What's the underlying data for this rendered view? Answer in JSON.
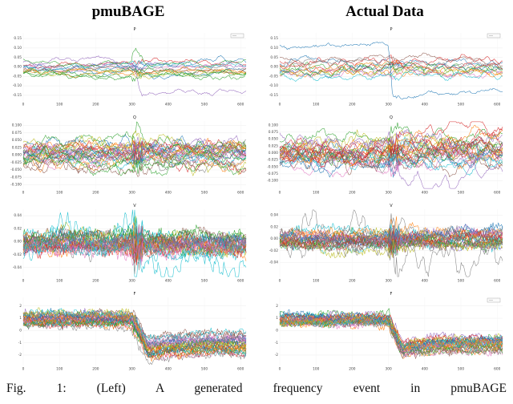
{
  "headers": [
    {
      "label": "pmuBAGE"
    },
    {
      "label": "Actual Data"
    }
  ],
  "caption": "Fig. 1: (Left) A generated frequency event in pmuBAGE",
  "palette": [
    "#1f77b4",
    "#ff7f0e",
    "#2ca02c",
    "#d62728",
    "#9467bd",
    "#8c564b",
    "#e377c2",
    "#7f7f7f",
    "#bcbd22",
    "#17becf"
  ],
  "chart_data": [
    {
      "type": "line",
      "panel": "pmuBAGE",
      "title": "P",
      "x_ticks": [
        0,
        100,
        200,
        300,
        400,
        500,
        600
      ],
      "x_tick_labels": [
        "0",
        "100",
        "200",
        "300",
        "400",
        "500",
        "600"
      ],
      "xlim": [
        0,
        615
      ],
      "y_ticks": [
        0.15,
        0.1,
        0.05,
        0.0,
        -0.05,
        -0.1,
        -0.15
      ],
      "y_tick_labels": [
        "0.15",
        "0.10",
        "0.05",
        "0.00",
        "-0.05",
        "-0.10",
        "-0.15"
      ],
      "ylim": [
        -0.18,
        0.18
      ],
      "n_series": 16,
      "seed": 11,
      "spread": 0.04,
      "noise": 0.004,
      "jitter": 0.0025,
      "wander": 0.008,
      "event_t": 300,
      "event_jitter": 0.012,
      "legend_box": true,
      "specials": [
        {
          "color": 4,
          "base": 0.02,
          "ev": {
            "shift": -0.15,
            "ramp": 25,
            "dip": -0.02
          }
        },
        {
          "color": 2,
          "base": 0.034,
          "ev": {
            "spike": 0.05,
            "shift": -0.01,
            "ramp": 40
          }
        },
        {
          "color": 2,
          "base": -0.042,
          "ev": {
            "spike": -0.025
          }
        }
      ]
    },
    {
      "type": "line",
      "panel": "Actual Data",
      "title": "P",
      "x_ticks": [
        0,
        100,
        200,
        300,
        400,
        500,
        600
      ],
      "x_tick_labels": [
        "0",
        "100",
        "200",
        "300",
        "400",
        "500",
        "600"
      ],
      "xlim": [
        0,
        615
      ],
      "y_ticks": [
        0.15,
        0.1,
        0.05,
        0.0,
        -0.05,
        -0.1,
        -0.15
      ],
      "y_tick_labels": [
        "0.15",
        "0.10",
        "0.05",
        "0.00",
        "-0.05",
        "-0.10",
        "-0.15"
      ],
      "ylim": [
        -0.18,
        0.18
      ],
      "n_series": 15,
      "seed": 22,
      "spread": 0.038,
      "noise": 0.005,
      "jitter": 0.003,
      "wander": 0.012,
      "event_t": 300,
      "event_jitter": 0.012,
      "legend_box": true,
      "specials": [
        {
          "color": 0,
          "base": 0.115,
          "wander": 0.006,
          "ev": {
            "shift": -0.255,
            "ramp": 12,
            "dip": -0.012
          }
        }
      ]
    },
    {
      "type": "line",
      "panel": "pmuBAGE",
      "title": "Q",
      "x_ticks": [
        0,
        100,
        200,
        300,
        400,
        500,
        600
      ],
      "x_tick_labels": [
        "0",
        "100",
        "200",
        "300",
        "400",
        "500",
        "600"
      ],
      "xlim": [
        0,
        615
      ],
      "y_ticks": [
        0.1,
        0.075,
        0.05,
        0.025,
        0.0,
        -0.025,
        -0.05,
        -0.075,
        -0.1
      ],
      "y_tick_labels": [
        "0.100",
        "0.075",
        "0.050",
        "0.025",
        "0.000",
        "-0.025",
        "-0.050",
        "-0.075",
        "-0.100"
      ],
      "ylim": [
        -0.115,
        0.115
      ],
      "n_series": 30,
      "seed": 33,
      "spread": 0.03,
      "noise": 0.006,
      "jitter": 0.0045,
      "wander": 0.013,
      "event_t": 300,
      "event_jitter": 0.02,
      "specials": [
        {
          "color": 2,
          "base": 0.012,
          "ev": {
            "spike": 0.072,
            "shift": 0.025,
            "ramp": 25
          }
        },
        {
          "color": 2,
          "base": -0.018,
          "ev": {
            "shift": -0.045,
            "ramp": 70
          }
        },
        {
          "color": 8,
          "base": 0.042,
          "ev": {
            "spike": 0.028
          }
        }
      ]
    },
    {
      "type": "line",
      "panel": "Actual Data",
      "title": "Q",
      "x_ticks": [
        0,
        100,
        200,
        300,
        400,
        500,
        600
      ],
      "x_tick_labels": [
        "0",
        "100",
        "200",
        "300",
        "400",
        "500",
        "600"
      ],
      "xlim": [
        0,
        615
      ],
      "y_ticks": [
        0.1,
        0.075,
        0.05,
        0.025,
        0.0,
        -0.025,
        -0.05,
        -0.075,
        -0.1
      ],
      "y_tick_labels": [
        "0.100",
        "0.075",
        "0.050",
        "0.025",
        "0.000",
        "-0.025",
        "-0.050",
        "-0.075",
        "-0.100"
      ],
      "ylim": [
        -0.13,
        0.115
      ],
      "n_series": 30,
      "seed": 44,
      "spread": 0.028,
      "noise": 0.007,
      "jitter": 0.0045,
      "wander": 0.017,
      "event_t": 300,
      "event_jitter": 0.02,
      "specials": [
        {
          "color": 4,
          "base": 0.062,
          "wander": 0.02,
          "ev": {
            "shift": -0.155,
            "ramp": 55
          }
        },
        {
          "color": 3,
          "base": 0.004,
          "ev": {
            "shift": 0.05,
            "ramp": 45
          }
        },
        {
          "color": 1,
          "base": -0.006,
          "ev": {
            "shift": 0.055,
            "ramp": 70
          }
        },
        {
          "color": 3,
          "base": 0.018,
          "ev": {
            "shift": 0.035,
            "ramp": 35
          }
        }
      ]
    },
    {
      "type": "line",
      "panel": "pmuBAGE",
      "title": "V",
      "x_ticks": [
        0,
        100,
        200,
        300,
        400,
        500,
        600
      ],
      "x_tick_labels": [
        "0",
        "100",
        "200",
        "300",
        "400",
        "500",
        "600"
      ],
      "xlim": [
        0,
        615
      ],
      "y_ticks": [
        0.04,
        0.02,
        0.0,
        -0.02,
        -0.04
      ],
      "y_tick_labels": [
        "0.04",
        "0.02",
        "0.00",
        "-0.02",
        "-0.04"
      ],
      "ylim": [
        -0.055,
        0.05
      ],
      "n_series": 30,
      "seed": 55,
      "spread": 0.011,
      "noise": 0.002,
      "jitter": 0.0075,
      "wander": 0.004,
      "event_t": 300,
      "event_jitter": 0.022,
      "specials": [
        {
          "color": 9,
          "base": 0.004,
          "wander": 0.021,
          "jitter": 0.007,
          "ev": {
            "shift": -0.034,
            "ramp": 90,
            "dip": -0.012
          }
        },
        {
          "color": 9,
          "base": -0.008,
          "ev": {
            "dip": -0.03,
            "ramp": 12
          }
        },
        {
          "color": 7,
          "ev": {
            "dip": -0.028,
            "ramp": 6
          }
        }
      ]
    },
    {
      "type": "line",
      "panel": "Actual Data",
      "title": "V",
      "x_ticks": [
        0,
        100,
        200,
        300,
        400,
        500,
        600
      ],
      "x_tick_labels": [
        "0",
        "100",
        "200",
        "300",
        "400",
        "500",
        "600"
      ],
      "xlim": [
        0,
        615
      ],
      "y_ticks": [
        0.04,
        0.02,
        0.0,
        -0.02,
        -0.04
      ],
      "y_tick_labels": [
        "0.04",
        "0.02",
        "0.00",
        "-0.02",
        "-0.04"
      ],
      "ylim": [
        -0.065,
        0.05
      ],
      "n_series": 28,
      "seed": 66,
      "spread": 0.009,
      "noise": 0.002,
      "jitter": 0.006,
      "wander": 0.003,
      "event_t": 300,
      "event_jitter": 0.02,
      "specials": [
        {
          "color": 7,
          "base": 0.008,
          "wander": 0.026,
          "jitter": 0.005,
          "ev": {
            "shift": -0.042,
            "ramp": 110
          }
        },
        {
          "color": 7,
          "base": -0.004,
          "wander": 0.012,
          "ev": {
            "dip": -0.028,
            "ramp": 25
          }
        }
      ]
    },
    {
      "type": "line",
      "panel": "pmuBAGE",
      "title": "F",
      "x_ticks": [
        0,
        100,
        200,
        300,
        400,
        500,
        600
      ],
      "x_tick_labels": [
        "0",
        "100",
        "200",
        "300",
        "400",
        "500",
        "600"
      ],
      "xlim": [
        0,
        615
      ],
      "y_ticks": [
        2,
        1,
        0,
        -1,
        -2
      ],
      "y_tick_labels": [
        "2",
        "1",
        "0",
        "-1",
        "-2"
      ],
      "ylim": [
        -2.85,
        2.7
      ],
      "n_series": 32,
      "seed": 77,
      "base_center": 0.9,
      "spread": 0.45,
      "noise": 0.04,
      "jitter": 0.27,
      "wander": 0.1,
      "event_t": 300,
      "event_jitter": 0.25,
      "event": {
        "shift": -1.95,
        "ramp": 45,
        "dip": -0.5,
        "rand": 0.25
      }
    },
    {
      "type": "line",
      "panel": "Actual Data",
      "title": "F",
      "x_ticks": [
        0,
        100,
        200,
        300,
        400,
        500,
        600
      ],
      "x_tick_labels": [
        "0",
        "100",
        "200",
        "300",
        "400",
        "500",
        "600"
      ],
      "xlim": [
        0,
        615
      ],
      "y_ticks": [
        2,
        1,
        0,
        -1,
        -2
      ],
      "y_tick_labels": [
        "2",
        "1",
        "0",
        "-1",
        "-2"
      ],
      "ylim": [
        -2.85,
        2.7
      ],
      "n_series": 32,
      "seed": 88,
      "base_center": 0.95,
      "spread": 0.4,
      "noise": 0.04,
      "jitter": 0.24,
      "wander": 0.1,
      "event_t": 300,
      "event_jitter": 0.22,
      "legend_box": true,
      "event": {
        "shift": -1.9,
        "ramp": 38,
        "dip": -0.45,
        "rand": 0.25
      }
    }
  ]
}
